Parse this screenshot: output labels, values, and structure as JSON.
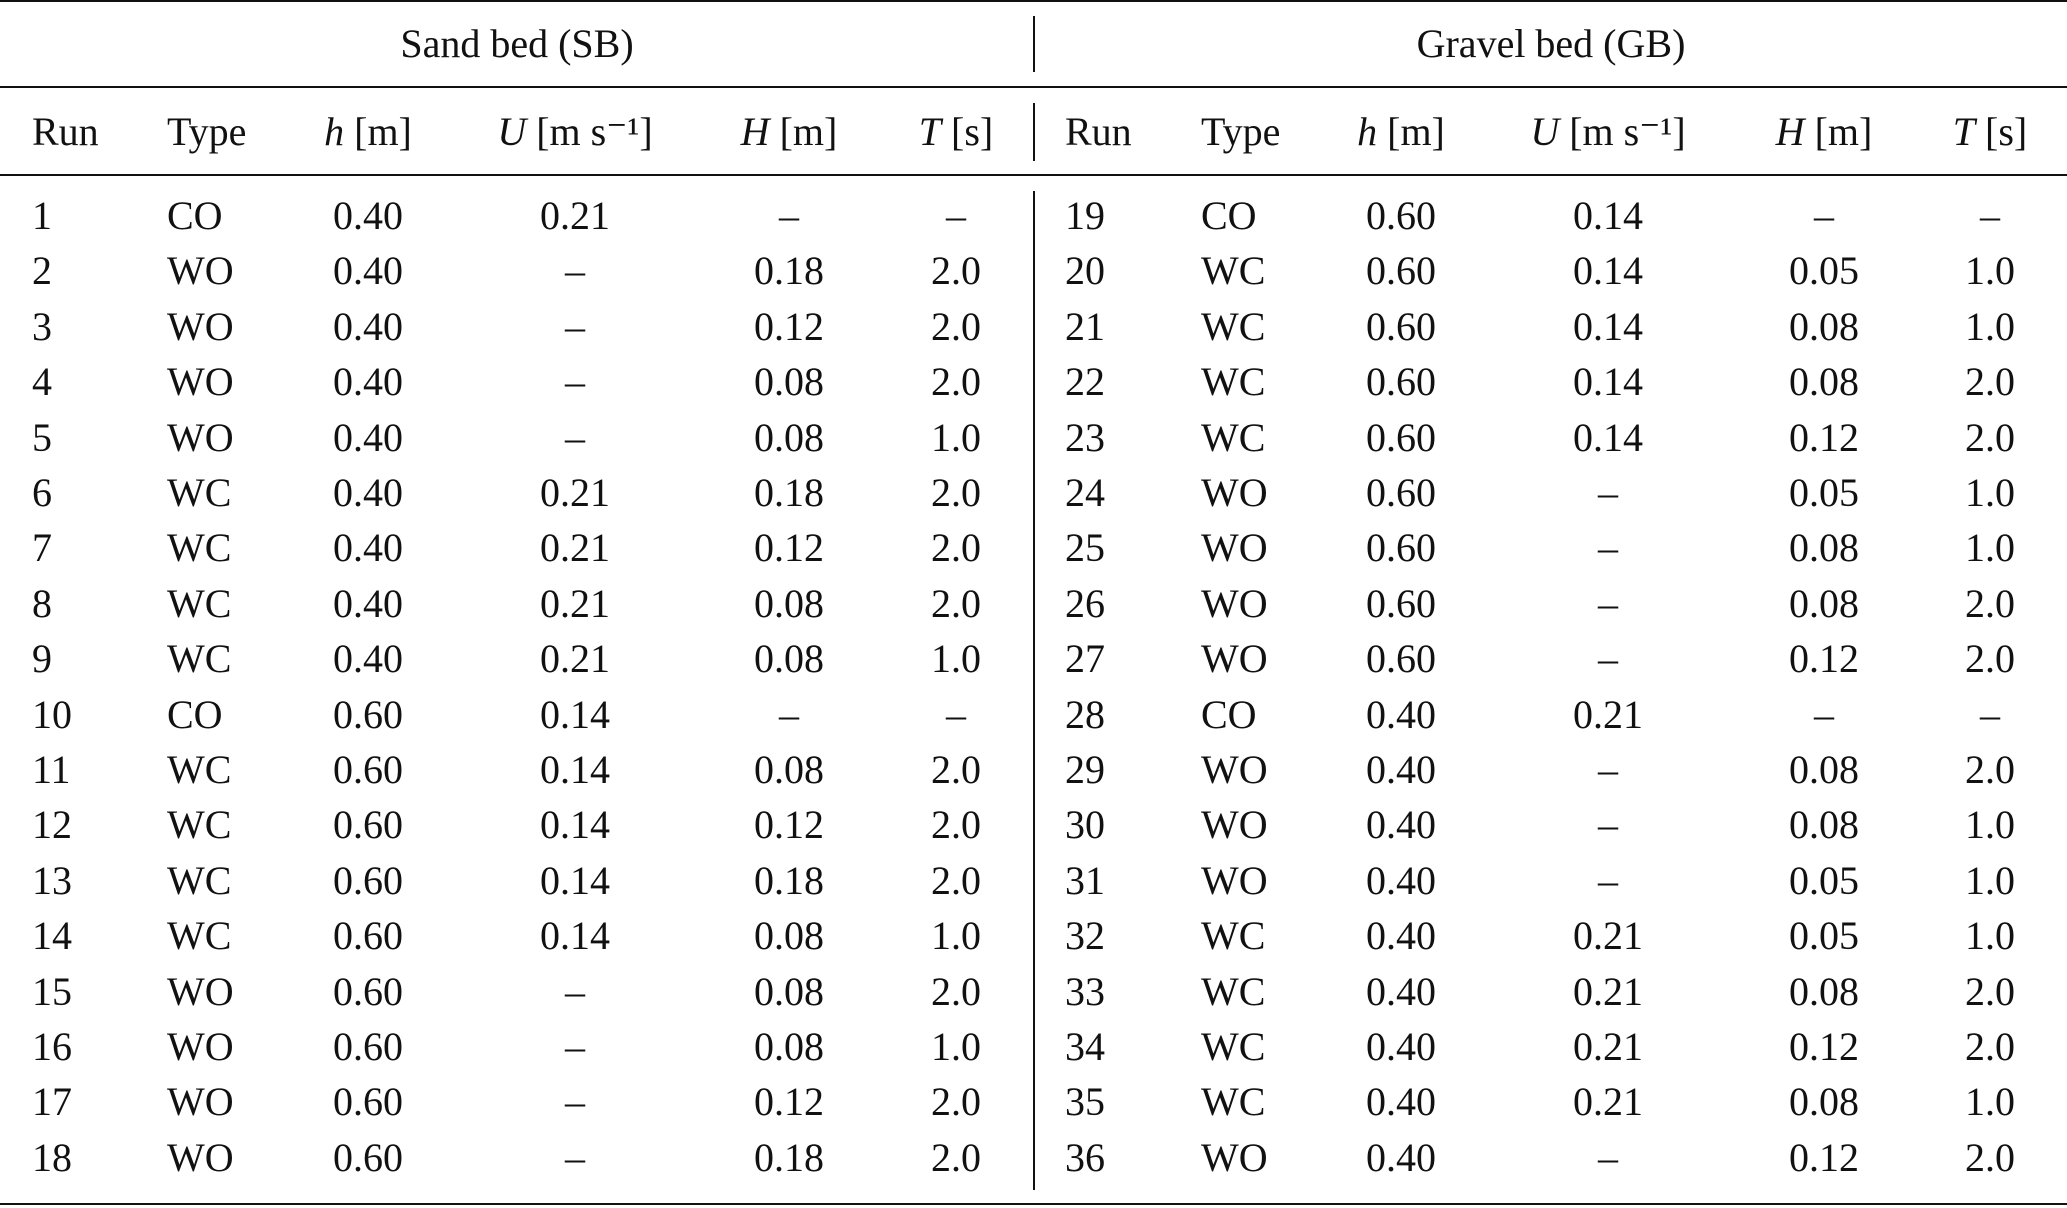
{
  "table": {
    "groups": [
      "Sand bed (SB)",
      "Gravel bed (GB)"
    ],
    "columns": [
      {
        "label": "Run"
      },
      {
        "label": "Type"
      },
      {
        "symbol": "h",
        "unit": "[m]"
      },
      {
        "symbol": "U",
        "unit": "[m s⁻¹]"
      },
      {
        "symbol": "H",
        "unit": "[m]"
      },
      {
        "symbol": "T",
        "unit": "[s]"
      },
      {
        "label": "Run"
      },
      {
        "label": "Type"
      },
      {
        "symbol": "h",
        "unit": "[m]"
      },
      {
        "symbol": "U",
        "unit": "[m s⁻¹]"
      },
      {
        "symbol": "H",
        "unit": "[m]"
      },
      {
        "symbol": "T",
        "unit": "[s]"
      }
    ],
    "rows": [
      [
        "1",
        "CO",
        "0.40",
        "0.21",
        "–",
        "–",
        "19",
        "CO",
        "0.60",
        "0.14",
        "–",
        "–"
      ],
      [
        "2",
        "WO",
        "0.40",
        "–",
        "0.18",
        "2.0",
        "20",
        "WC",
        "0.60",
        "0.14",
        "0.05",
        "1.0"
      ],
      [
        "3",
        "WO",
        "0.40",
        "–",
        "0.12",
        "2.0",
        "21",
        "WC",
        "0.60",
        "0.14",
        "0.08",
        "1.0"
      ],
      [
        "4",
        "WO",
        "0.40",
        "–",
        "0.08",
        "2.0",
        "22",
        "WC",
        "0.60",
        "0.14",
        "0.08",
        "2.0"
      ],
      [
        "5",
        "WO",
        "0.40",
        "–",
        "0.08",
        "1.0",
        "23",
        "WC",
        "0.60",
        "0.14",
        "0.12",
        "2.0"
      ],
      [
        "6",
        "WC",
        "0.40",
        "0.21",
        "0.18",
        "2.0",
        "24",
        "WO",
        "0.60",
        "–",
        "0.05",
        "1.0"
      ],
      [
        "7",
        "WC",
        "0.40",
        "0.21",
        "0.12",
        "2.0",
        "25",
        "WO",
        "0.60",
        "–",
        "0.08",
        "1.0"
      ],
      [
        "8",
        "WC",
        "0.40",
        "0.21",
        "0.08",
        "2.0",
        "26",
        "WO",
        "0.60",
        "–",
        "0.08",
        "2.0"
      ],
      [
        "9",
        "WC",
        "0.40",
        "0.21",
        "0.08",
        "1.0",
        "27",
        "WO",
        "0.60",
        "–",
        "0.12",
        "2.0"
      ],
      [
        "10",
        "CO",
        "0.60",
        "0.14",
        "–",
        "–",
        "28",
        "CO",
        "0.40",
        "0.21",
        "–",
        "–"
      ],
      [
        "11",
        "WC",
        "0.60",
        "0.14",
        "0.08",
        "2.0",
        "29",
        "WO",
        "0.40",
        "–",
        "0.08",
        "2.0"
      ],
      [
        "12",
        "WC",
        "0.60",
        "0.14",
        "0.12",
        "2.0",
        "30",
        "WO",
        "0.40",
        "–",
        "0.08",
        "1.0"
      ],
      [
        "13",
        "WC",
        "0.60",
        "0.14",
        "0.18",
        "2.0",
        "31",
        "WO",
        "0.40",
        "–",
        "0.05",
        "1.0"
      ],
      [
        "14",
        "WC",
        "0.60",
        "0.14",
        "0.08",
        "1.0",
        "32",
        "WC",
        "0.40",
        "0.21",
        "0.05",
        "1.0"
      ],
      [
        "15",
        "WO",
        "0.60",
        "–",
        "0.08",
        "2.0",
        "33",
        "WC",
        "0.40",
        "0.21",
        "0.08",
        "2.0"
      ],
      [
        "16",
        "WO",
        "0.60",
        "–",
        "0.08",
        "1.0",
        "34",
        "WC",
        "0.40",
        "0.21",
        "0.12",
        "2.0"
      ],
      [
        "17",
        "WO",
        "0.60",
        "–",
        "0.12",
        "2.0",
        "35",
        "WC",
        "0.40",
        "0.21",
        "0.08",
        "1.0"
      ],
      [
        "18",
        "WO",
        "0.60",
        "–",
        "0.18",
        "2.0",
        "36",
        "WO",
        "0.40",
        "–",
        "0.12",
        "2.0"
      ]
    ]
  }
}
